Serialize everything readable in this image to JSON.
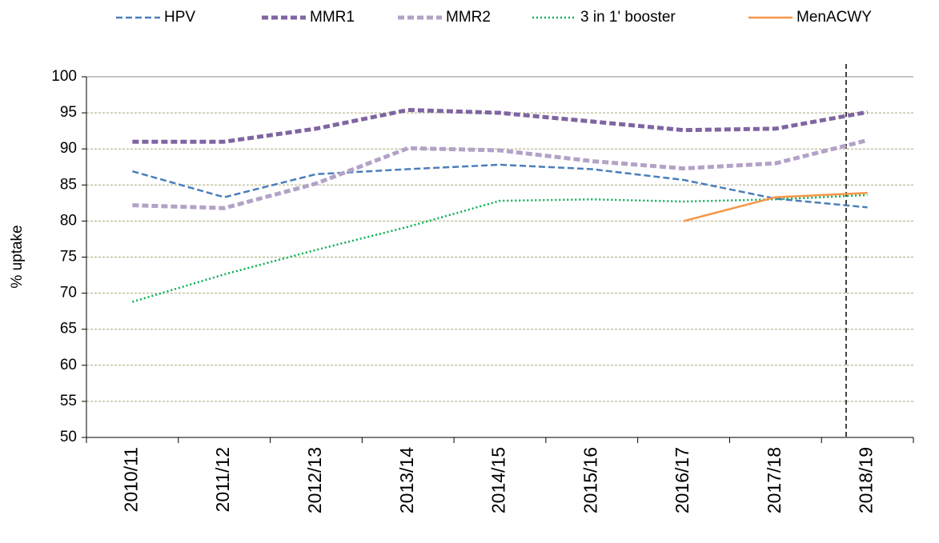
{
  "chart_data": {
    "type": "line",
    "y_label": "% uptake",
    "categories": [
      "2010/11",
      "2011/12",
      "2012/13",
      "2013/14",
      "2014/15",
      "2015/16",
      "2016/17",
      "2017/18",
      "2018/19"
    ],
    "series": [
      {
        "name": "HPV",
        "color": "#4a7ebb",
        "linestyle": "dashed",
        "values": [
          86.9,
          83.3,
          86.5,
          87.2,
          87.8,
          87.2,
          85.7,
          83.1,
          81.9
        ]
      },
      {
        "name": "MMR1",
        "color": "#8064a2",
        "linestyle": "dashed",
        "values": [
          91.0,
          91.0,
          92.8,
          95.4,
          95.0,
          93.8,
          92.6,
          92.8,
          95.1
        ]
      },
      {
        "name": "MMR2",
        "color": "#b3a2c7",
        "linestyle": "dashed",
        "values": [
          82.2,
          81.8,
          85.2,
          90.1,
          89.8,
          88.3,
          87.3,
          88.0,
          91.2
        ]
      },
      {
        "name": "3 in 1' booster",
        "color": "#00b050",
        "linestyle": "dotted",
        "values": [
          68.8,
          72.6,
          76.0,
          79.2,
          82.8,
          83.0,
          82.7,
          83.0,
          83.6
        ]
      },
      {
        "name": "MenACWY",
        "color": "#f79646",
        "linestyle": "solid",
        "values": [
          null,
          null,
          null,
          null,
          null,
          null,
          80.0,
          83.3,
          83.9
        ]
      }
    ],
    "ylim": [
      50,
      100
    ],
    "yticks": [
      50,
      55,
      60,
      65,
      70,
      75,
      80,
      85,
      90,
      95,
      100
    ],
    "grid": true,
    "legend": "top"
  }
}
